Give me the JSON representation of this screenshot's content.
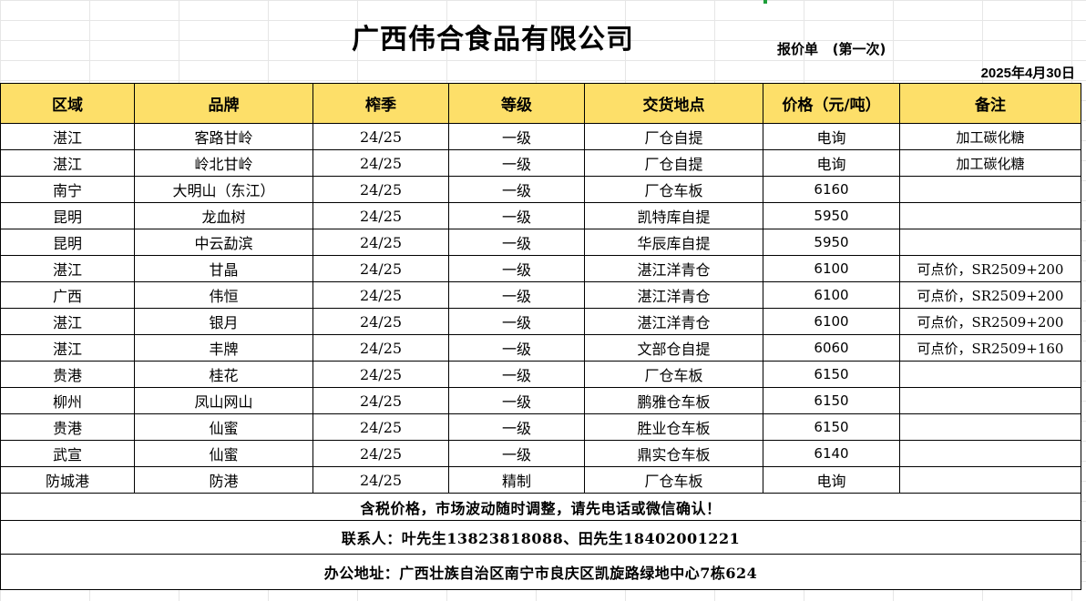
{
  "header": {
    "company": "广西伟合食品有限公司",
    "quote_label": "报价单   (第一次)",
    "date": "2025年4月30日"
  },
  "table": {
    "columns": [
      "区域",
      "品牌",
      "榨季",
      "等级",
      "交货地点",
      "价格（元/吨）",
      "备注"
    ],
    "rows": [
      [
        "湛江",
        "客路甘岭",
        "24/25",
        "一级",
        "厂仓自提",
        "电询",
        "加工碳化糖"
      ],
      [
        "湛江",
        "岭北甘岭",
        "24/25",
        "一级",
        "厂仓自提",
        "电询",
        "加工碳化糖"
      ],
      [
        "南宁",
        "大明山（东江）",
        "24/25",
        "一级",
        "厂仓车板",
        "6160",
        ""
      ],
      [
        "昆明",
        "龙血树",
        "24/25",
        "一级",
        "凯特库自提",
        "5950",
        ""
      ],
      [
        "昆明",
        "中云勐滨",
        "24/25",
        "一级",
        "华辰库自提",
        "5950",
        ""
      ],
      [
        "湛江",
        "甘晶",
        "24/25",
        "一级",
        "湛江洋青仓",
        "6100",
        "可点价，SR2509+200"
      ],
      [
        "广西",
        "伟恒",
        "24/25",
        "一级",
        "湛江洋青仓",
        "6100",
        "可点价，SR2509+200"
      ],
      [
        "湛江",
        "银月",
        "24/25",
        "一级",
        "湛江洋青仓",
        "6100",
        "可点价，SR2509+200"
      ],
      [
        "湛江",
        "丰牌",
        "24/25",
        "一级",
        "文部仓自提",
        "6060",
        "可点价，SR2509+160"
      ],
      [
        "贵港",
        "桂花",
        "24/25",
        "一级",
        "厂仓车板",
        "6150",
        ""
      ],
      [
        "柳州",
        "凤山网山",
        "24/25",
        "一级",
        "鹏雅仓车板",
        "6150",
        ""
      ],
      [
        "贵港",
        "仙蜜",
        "24/25",
        "一级",
        "胜业仓车板",
        "6150",
        ""
      ],
      [
        "武宣",
        "仙蜜",
        "24/25",
        "一级",
        "鼎实仓车板",
        "6140",
        ""
      ],
      [
        "防城港",
        "防港",
        "24/25",
        "精制",
        "厂仓车板",
        "电询",
        ""
      ]
    ]
  },
  "footer": {
    "notice": "含税价格，市场波动随时调整，请先电话或微信确认！",
    "contact": "联系人：叶先生13823818088、田先生18402001221",
    "address": "办公地址：广西壮族自治区南宁市良庆区凯旋路绿地中心7栋624"
  },
  "colors": {
    "header_fill": "#fddf69",
    "border": "#000000",
    "grid": "#e6e6e6"
  }
}
